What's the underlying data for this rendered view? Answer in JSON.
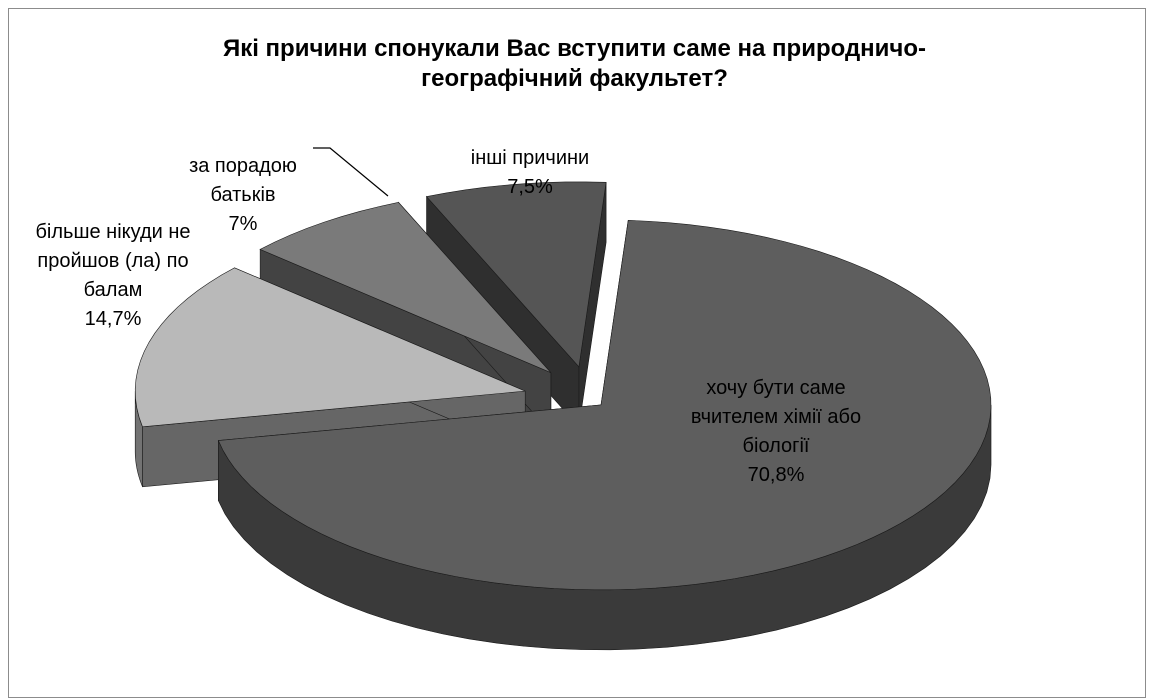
{
  "chart_data": {
    "type": "pie",
    "title": "Які причини спонукали Вас вступити саме на природничо-\nгеографічний факультет?",
    "slices": [
      {
        "label_lines": [
          "хочу бути саме",
          "вчителем хімії або",
          "біології"
        ],
        "value_label": "70,8%",
        "value": 70.8,
        "color": "#5e5e5e",
        "exploded": true
      },
      {
        "label_lines": [
          "більше нікуди не",
          "пройшов (ла) по",
          "балам"
        ],
        "value_label": "14,7%",
        "value": 14.7,
        "color": "#b9b9b9",
        "exploded": true
      },
      {
        "label_lines": [
          "за порадою",
          "батьків"
        ],
        "value_label": "7%",
        "value": 7,
        "color": "#7a7a7a",
        "exploded": true
      },
      {
        "label_lines": [
          "інші причини"
        ],
        "value_label": "7,5%",
        "value": 7.5,
        "color": "#555555",
        "exploded": true
      }
    ],
    "legend": "none"
  }
}
